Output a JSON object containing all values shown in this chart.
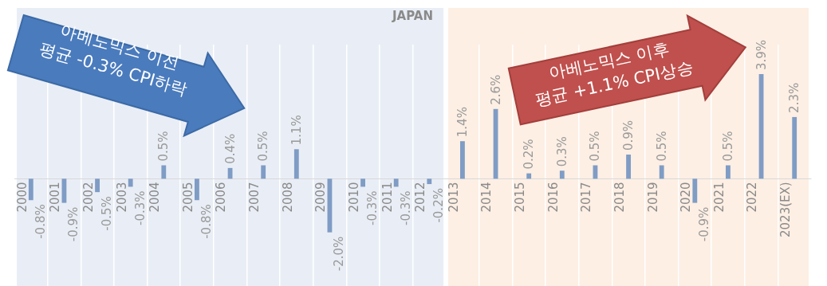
{
  "chart_data": {
    "type": "bar",
    "title": "JAPAN",
    "categories": [
      "2000",
      "2001",
      "2002",
      "2003",
      "2004",
      "2005",
      "2006",
      "2007",
      "2008",
      "2009",
      "2010",
      "2011",
      "2012",
      "2013",
      "2014",
      "2015",
      "2016",
      "2017",
      "2018",
      "2019",
      "2020",
      "2021",
      "2022",
      "2023(EX)"
    ],
    "values": [
      -0.8,
      -0.9,
      -0.5,
      -0.3,
      0.5,
      -0.8,
      0.4,
      0.5,
      1.1,
      -2.0,
      -0.3,
      -0.3,
      -0.2,
      1.4,
      2.6,
      0.2,
      0.3,
      0.5,
      0.9,
      0.5,
      -0.9,
      0.5,
      3.9,
      2.3
    ],
    "value_labels": [
      "-0.8%",
      "-0.9%",
      "-0.5%",
      "-0.3%",
      "0.5%",
      "-0.8%",
      "0.4%",
      "0.5%",
      "1.1%",
      "-2.0%",
      "-0.3%",
      "-0.3%",
      "-0.2%",
      "1.4%",
      "2.6%",
      "0.2%",
      "0.3%",
      "0.5%",
      "0.9%",
      "0.5%",
      "-0.9%",
      "0.5%",
      "3.9%",
      "2.3%"
    ],
    "color": "#7f9cc5",
    "bands": [
      {
        "axis": "x",
        "from": "2000",
        "to": "2012",
        "color": "#e9eef6"
      },
      {
        "axis": "x",
        "from": "2013",
        "to": "2023(EX)",
        "color": "#fdefe4"
      }
    ],
    "annotations": [
      "아베노믹스 이전\n평균 -0.3% CPI하락",
      "아베노믹스 이후\n평균 +1.1% CPI상승"
    ],
    "grid": "x",
    "legend": false
  }
}
